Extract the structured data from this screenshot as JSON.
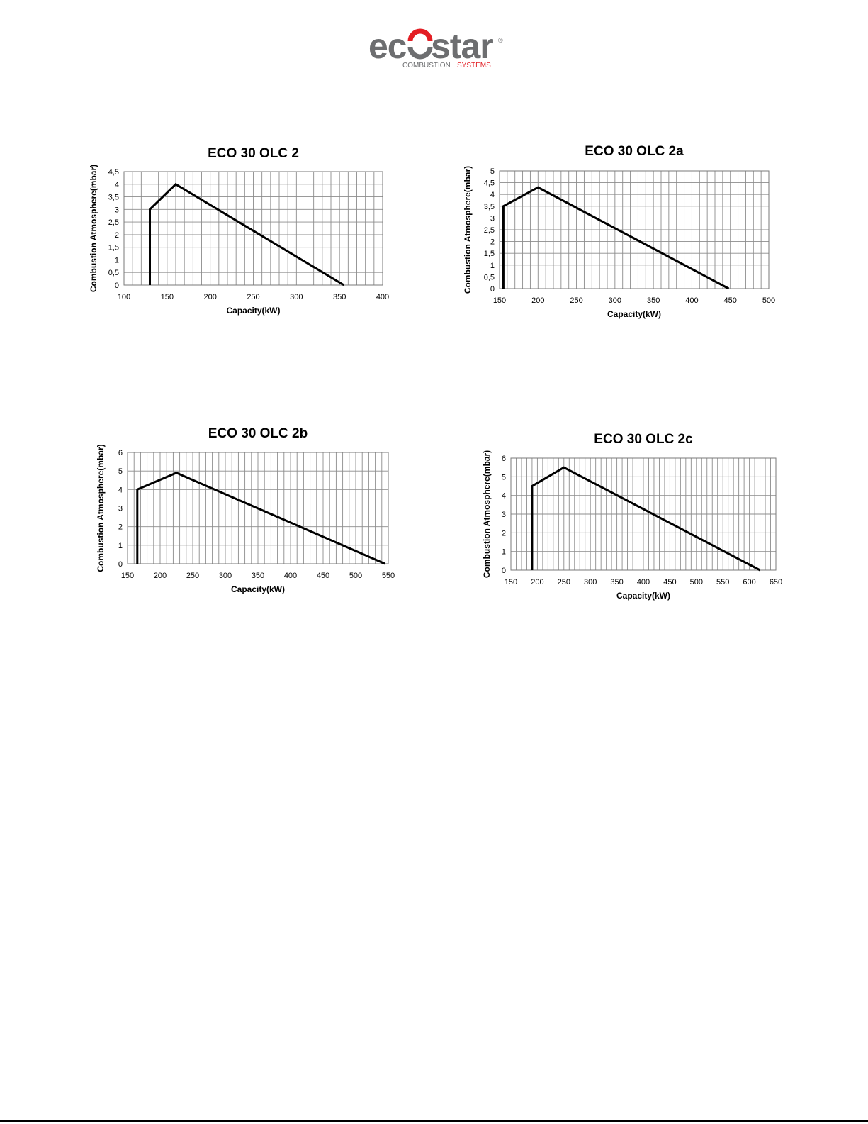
{
  "logo": {
    "word": "ecostar",
    "tagline_left": "COMBUSTION",
    "tagline_right": "SYSTEMS",
    "registered": "®",
    "colors": {
      "gray": "#6d6e70",
      "red": "#e31e24"
    }
  },
  "chart_data": [
    {
      "type": "line",
      "title": "ECO 30 OLC 2",
      "xlabel": "Capacity(kW)",
      "ylabel": "Combustion Atmosphere(mbar)",
      "xlim": [
        100,
        400
      ],
      "xstep": 50,
      "xminor": 10,
      "ylim": [
        0,
        4.5
      ],
      "ystep": 0.5,
      "x_tick_labels": [
        "100",
        "150",
        "200",
        "250",
        "300",
        "350",
        "400"
      ],
      "y_tick_labels": [
        "0",
        "0,5",
        "1",
        "1,5",
        "2",
        "2,5",
        "3",
        "3,5",
        "4",
        "4,5"
      ],
      "grid": true,
      "series": [
        {
          "x": [
            130,
            130,
            160,
            355
          ],
          "y": [
            0,
            3,
            4,
            0
          ]
        }
      ]
    },
    {
      "type": "line",
      "title": "ECO 30 OLC 2a",
      "xlabel": "Capacity(kW)",
      "ylabel": "Combustion Atmosphere(mbar)",
      "xlim": [
        150,
        500
      ],
      "xstep": 50,
      "xminor": 10,
      "ylim": [
        0,
        5
      ],
      "ystep": 0.5,
      "x_tick_labels": [
        "150",
        "200",
        "250",
        "300",
        "350",
        "400",
        "450",
        "500"
      ],
      "y_tick_labels": [
        "0",
        "0,5",
        "1",
        "1,5",
        "2",
        "2,5",
        "3",
        "3,5",
        "4",
        "4,5",
        "5"
      ],
      "grid": true,
      "series": [
        {
          "x": [
            155,
            155,
            200,
            448
          ],
          "y": [
            0,
            3.5,
            4.3,
            0
          ]
        }
      ]
    },
    {
      "type": "line",
      "title": "ECO 30 OLC 2b",
      "xlabel": "Capacity(kW)",
      "ylabel": "Combustion Atmosphere(mbar)",
      "xlim": [
        150,
        550
      ],
      "xstep": 50,
      "xminor": 10,
      "ylim": [
        0,
        6
      ],
      "ystep": 1,
      "x_tick_labels": [
        "150",
        "200",
        "250",
        "300",
        "350",
        "400",
        "450",
        "500",
        "550"
      ],
      "y_tick_labels": [
        "0",
        "1",
        "2",
        "3",
        "4",
        "5",
        "6"
      ],
      "grid": true,
      "series": [
        {
          "x": [
            165,
            165,
            225,
            545
          ],
          "y": [
            0,
            4,
            4.9,
            0
          ]
        }
      ]
    },
    {
      "type": "line",
      "title": "ECO 30 OLC 2c",
      "xlabel": "Capacity(kW)",
      "ylabel": "Combustion Atmosphere(mbar)",
      "xlim": [
        150,
        650
      ],
      "xstep": 50,
      "xminor": 10,
      "ylim": [
        0,
        6
      ],
      "ystep": 1,
      "x_tick_labels": [
        "150",
        "200",
        "250",
        "300",
        "350",
        "400",
        "450",
        "500",
        "550",
        "600",
        "650"
      ],
      "y_tick_labels": [
        "0",
        "1",
        "2",
        "3",
        "4",
        "5",
        "6"
      ],
      "grid": true,
      "series": [
        {
          "x": [
            190,
            190,
            250,
            620
          ],
          "y": [
            0,
            4.5,
            5.5,
            0
          ]
        }
      ]
    }
  ]
}
